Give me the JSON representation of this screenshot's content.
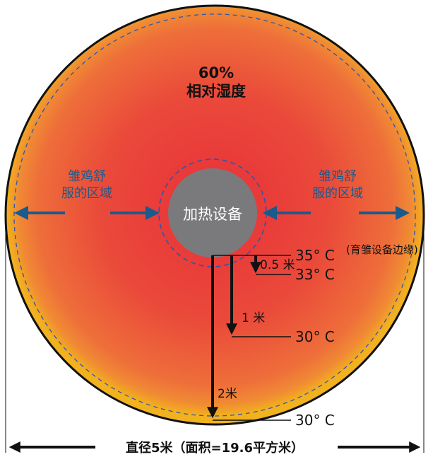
{
  "colors": {
    "hot_center": "#e8303a",
    "mid": "#ec5a3c",
    "outer": "#ee7a3a",
    "yellow_edge": "#f2a81e",
    "heater": "#7a7a7c",
    "arrow_blue": "#1a5a8c",
    "ring_dash": "#2f56a6",
    "label_white": "#ffffff",
    "label_black": "#111111"
  },
  "humidity": {
    "value": "60%",
    "label": "相对湿度"
  },
  "heater_label": "加热设备",
  "comfort_zone": {
    "left": [
      "雏鸡舒",
      "服的区域"
    ],
    "right": [
      "雏鸡舒",
      "服的区域"
    ]
  },
  "temperatures": {
    "edge": {
      "temp": "35° C",
      "note": "(育雏设备边缘)"
    },
    "half_meter": {
      "distance": "0.5 米",
      "temp": "33° C"
    },
    "one_meter": {
      "distance": "1 米",
      "temp": "30° C"
    },
    "two_meter": {
      "distance": "2米",
      "temp": "30° C"
    }
  },
  "diameter_label": "直径5米（面积=19.6平方米）"
}
